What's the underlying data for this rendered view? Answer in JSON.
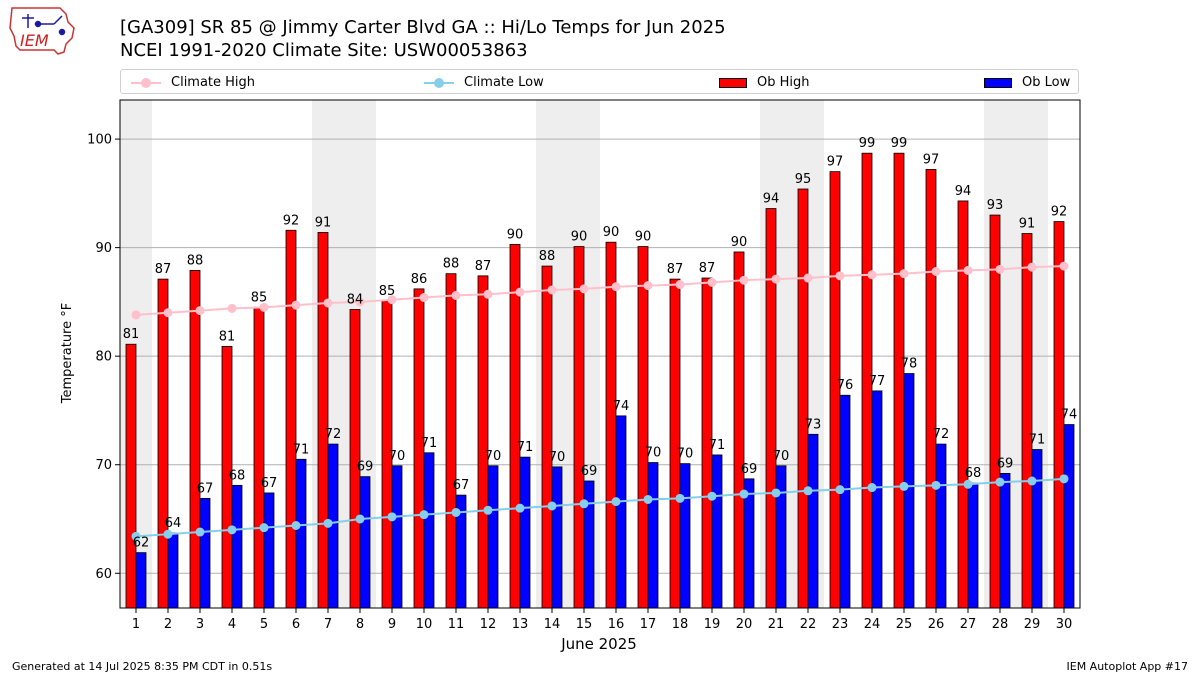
{
  "logo": {
    "text": "IEM"
  },
  "title": {
    "line1": "[GA309] SR 85 @ Jimmy Carter Blvd  GA :: Hi/Lo Temps for Jun 2025",
    "line2": "NCEI 1991-2020 Climate Site: USW00053863"
  },
  "footer": {
    "generated": "Generated at 14 Jul 2025 8:35 PM CDT in 0.51s",
    "app": "IEM Autoplot App #17"
  },
  "chart_data": {
    "type": "bar",
    "xlabel": "June 2025",
    "ylabel": "Temperature °F",
    "ylim": [
      56.8,
      103.6
    ],
    "yticks": [
      60,
      70,
      80,
      90,
      100
    ],
    "grid": "horizontal",
    "legend_position": "top",
    "weekend_shading": true,
    "weekend_days": [
      1,
      7,
      8,
      14,
      15,
      21,
      22,
      28,
      29
    ],
    "categories": [
      "1",
      "2",
      "3",
      "4",
      "5",
      "6",
      "7",
      "8",
      "9",
      "10",
      "11",
      "12",
      "13",
      "14",
      "15",
      "16",
      "17",
      "18",
      "19",
      "20",
      "21",
      "22",
      "23",
      "24",
      "25",
      "26",
      "27",
      "28",
      "29",
      "30"
    ],
    "colors": {
      "ob_high": "#ff0000",
      "ob_low": "#0000ff",
      "climate_high": "#ffc0cb",
      "climate_low": "#87ceeb",
      "weekend_shade": "#eeeeee",
      "grid": "#b0b0b0"
    },
    "series": [
      {
        "name": "Ob High",
        "kind": "bar",
        "values": [
          81.1,
          87.1,
          87.9,
          80.9,
          84.5,
          91.6,
          91.4,
          84.3,
          85.1,
          86.2,
          87.6,
          87.4,
          90.3,
          88.3,
          90.1,
          90.5,
          90.1,
          87.1,
          87.2,
          89.6,
          93.6,
          95.4,
          97.0,
          98.7,
          98.7,
          97.2,
          94.3,
          93.0,
          91.3,
          92.4
        ],
        "labels": [
          "81",
          "87",
          "88",
          "81",
          "85",
          "92",
          "91",
          "84",
          "85",
          "86",
          "88",
          "87",
          "90",
          "88",
          "90",
          "90",
          "90",
          "87",
          "87",
          "90",
          "94",
          "95",
          "97",
          "99",
          "99",
          "97",
          "94",
          "93",
          "91",
          "92"
        ]
      },
      {
        "name": "Ob Low",
        "kind": "bar",
        "values": [
          61.9,
          63.7,
          66.9,
          68.1,
          67.4,
          70.5,
          71.9,
          68.9,
          69.9,
          71.1,
          67.2,
          69.9,
          70.7,
          69.8,
          68.5,
          74.5,
          70.2,
          70.1,
          70.9,
          68.7,
          69.9,
          72.8,
          76.4,
          76.8,
          78.4,
          71.9,
          68.3,
          69.2,
          71.4,
          73.7
        ],
        "labels": [
          "62",
          "64",
          "67",
          "68",
          "67",
          "71",
          "72",
          "69",
          "70",
          "71",
          "67",
          "70",
          "71",
          "70",
          "69",
          "74",
          "70",
          "70",
          "71",
          "69",
          "70",
          "73",
          "76",
          "77",
          "78",
          "72",
          "68",
          "69",
          "71",
          "74"
        ]
      },
      {
        "name": "Climate High",
        "kind": "line",
        "values": [
          83.8,
          84.0,
          84.2,
          84.4,
          84.5,
          84.7,
          84.9,
          85.0,
          85.2,
          85.4,
          85.6,
          85.7,
          85.9,
          86.1,
          86.2,
          86.4,
          86.5,
          86.6,
          86.8,
          87.0,
          87.1,
          87.2,
          87.4,
          87.5,
          87.6,
          87.8,
          87.9,
          88.0,
          88.2,
          88.3
        ]
      },
      {
        "name": "Climate Low",
        "kind": "line",
        "values": [
          63.4,
          63.6,
          63.8,
          64.0,
          64.2,
          64.4,
          64.6,
          65.0,
          65.2,
          65.4,
          65.6,
          65.8,
          66.0,
          66.2,
          66.4,
          66.6,
          66.8,
          66.9,
          67.1,
          67.3,
          67.4,
          67.6,
          67.7,
          67.9,
          68.0,
          68.1,
          68.2,
          68.4,
          68.5,
          68.7
        ]
      }
    ]
  }
}
